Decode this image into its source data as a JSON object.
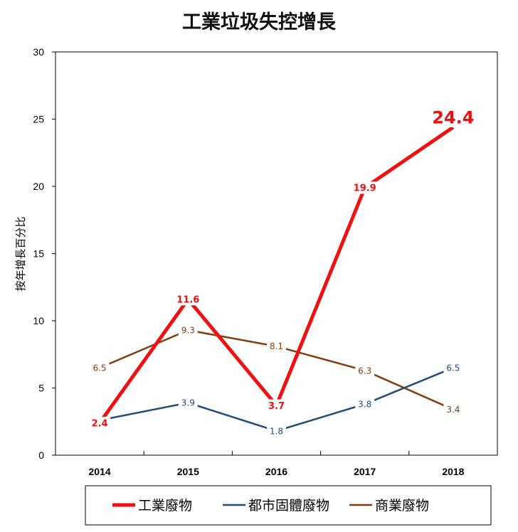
{
  "chart_data": {
    "type": "line",
    "title": "工業垃圾失控增長",
    "ylabel": "按年增長百分比",
    "xlabel": "",
    "categories": [
      "2014",
      "2015",
      "2016",
      "2017",
      "2018"
    ],
    "ylim": [
      0,
      30
    ],
    "yticks": [
      "0",
      "5",
      "10",
      "15",
      "20",
      "25",
      "30"
    ],
    "grid": false,
    "legend_position": "bottom",
    "series": [
      {
        "name": "工業廢物",
        "color": "#ee1111",
        "values": [
          2.4,
          11.6,
          3.7,
          19.9,
          24.4
        ],
        "labels": [
          "2.4",
          "11.6",
          "3.7",
          "19.9",
          "24.4"
        ]
      },
      {
        "name": "都市固體廢物",
        "color": "#1f4e79",
        "values": [
          2.6,
          3.9,
          1.8,
          3.8,
          6.5
        ],
        "labels": [
          "",
          "3.9",
          "1.8",
          "3.8",
          "6.5"
        ]
      },
      {
        "name": "商業廢物",
        "color": "#843c0c",
        "values": [
          6.5,
          9.3,
          8.1,
          6.3,
          3.4
        ],
        "labels": [
          "6.5",
          "9.3",
          "8.1",
          "6.3",
          "3.4"
        ]
      }
    ]
  }
}
